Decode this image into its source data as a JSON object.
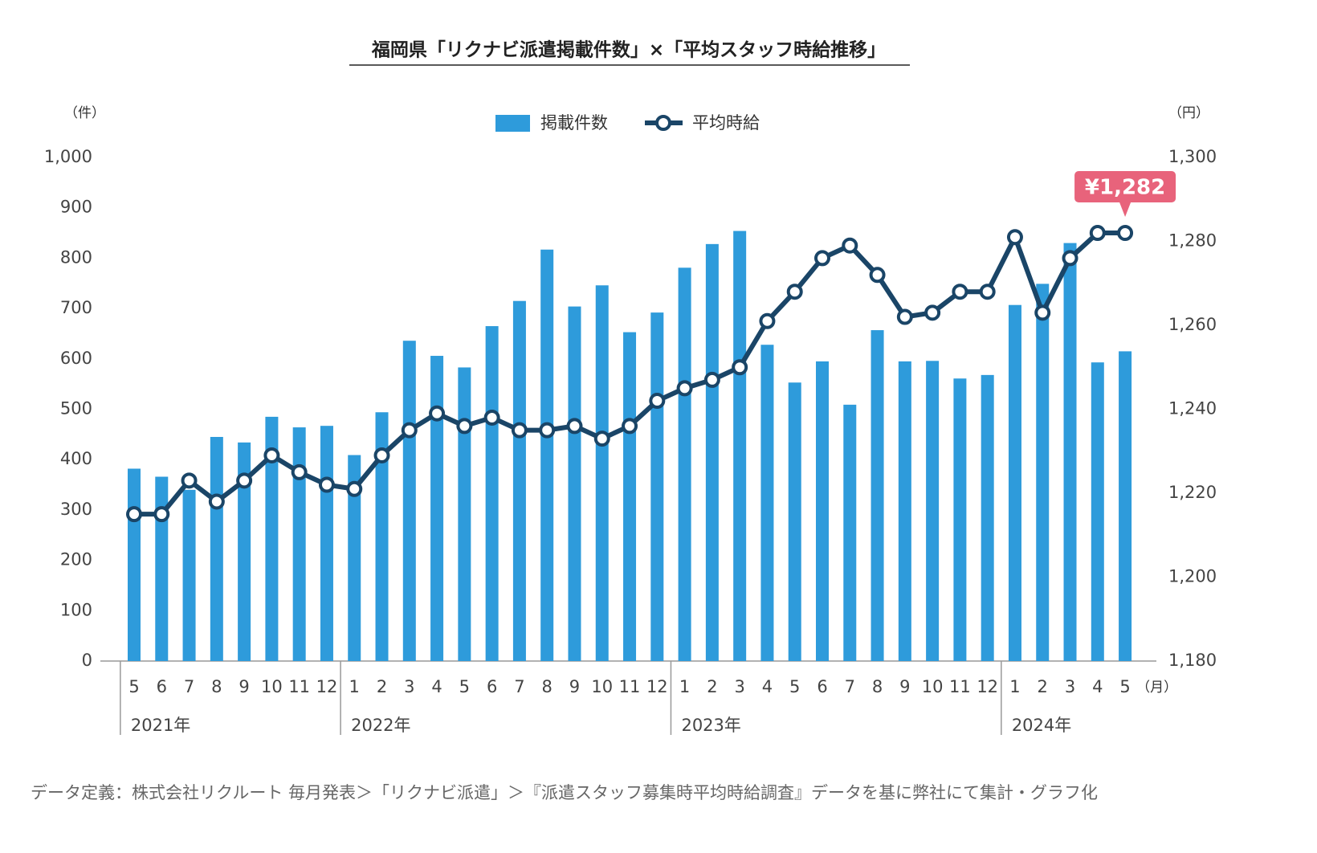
{
  "chart_data": {
    "type": "bar-line",
    "title": "福岡県「リクナビ派遣掲載件数」×「平均スタッフ時給推移」",
    "y_unit": "（件）",
    "y2_unit": "（円）",
    "x_unit": "（月）",
    "groups": [
      {
        "label": "2021年",
        "categories": [
          "5",
          "6",
          "7",
          "8",
          "9",
          "10",
          "11",
          "12"
        ]
      },
      {
        "label": "2022年",
        "categories": [
          "1",
          "2",
          "3",
          "4",
          "5",
          "6",
          "7",
          "8",
          "9",
          "10",
          "11",
          "12"
        ]
      },
      {
        "label": "2023年",
        "categories": [
          "1",
          "2",
          "3",
          "4",
          "5",
          "6",
          "7",
          "8",
          "9",
          "10",
          "11",
          "12"
        ]
      },
      {
        "label": "2024年",
        "categories": [
          "1",
          "2",
          "3",
          "4",
          "5"
        ]
      }
    ],
    "series": [
      {
        "name": "掲載件数",
        "type": "bar",
        "color": "#2e9bdb",
        "values": [
          382,
          366,
          340,
          445,
          434,
          485,
          464,
          467,
          409,
          494,
          636,
          606,
          583,
          665,
          715,
          817,
          704,
          746,
          653,
          692,
          781,
          828,
          854,
          628,
          553,
          595,
          509,
          657,
          595,
          596,
          561,
          568,
          707,
          749,
          830,
          593,
          615
        ]
      },
      {
        "name": "平均時給",
        "type": "line",
        "axis": "y2",
        "color": "#1a4567",
        "values": [
          1215,
          1215,
          1223,
          1218,
          1223,
          1229,
          1225,
          1222,
          1221,
          1229,
          1235,
          1239,
          1236,
          1238,
          1235,
          1235,
          1236,
          1233,
          1236,
          1242,
          1245,
          1247,
          1250,
          1261,
          1268,
          1276,
          1279,
          1272,
          1262,
          1263,
          1268,
          1268,
          1281,
          1263,
          1276,
          1282,
          1282
        ]
      }
    ],
    "annotation": "¥1,282",
    "ylim": [
      0,
      1000
    ],
    "yticks": [
      0,
      100,
      200,
      300,
      400,
      500,
      600,
      700,
      800,
      900,
      {
        "value": 1000,
        "label": "1,000"
      }
    ],
    "y2lim": [
      1180,
      1300
    ],
    "y2ticks": [
      {
        "value": 1180,
        "label": "1,180"
      },
      {
        "value": 1200,
        "label": "1,200"
      },
      {
        "value": 1220,
        "label": "1,220"
      },
      {
        "value": 1240,
        "label": "1,240"
      },
      {
        "value": 1260,
        "label": "1,260"
      },
      {
        "value": 1280,
        "label": "1,280"
      },
      {
        "value": 1300,
        "label": "1,300"
      }
    ],
    "grid": false,
    "note": "データ定義：株式会社リクルート 毎月発表＞「リクナビ派遣」＞『派遣スタッフ募集時平均時給調査』データを基に弊社にて集計・グラフ化"
  }
}
